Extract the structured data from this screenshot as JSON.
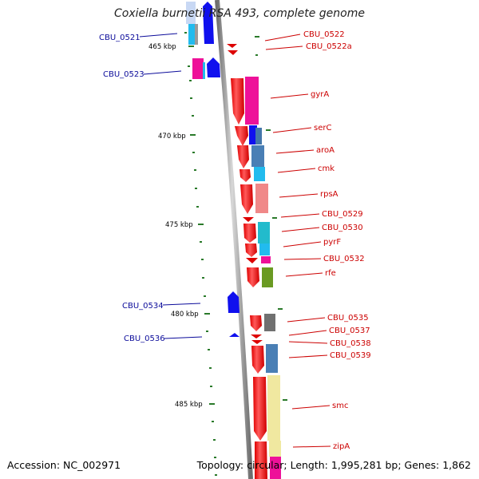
{
  "title": "Coxiella burnetii RSA 493, complete genome",
  "footer": {
    "accession": "Accession: NC_002971",
    "topology": "Topology: circular; Length: 1,995,281 bp; Genes: 1,862"
  },
  "scale_labels": [
    "465 kbp",
    "470 kbp",
    "475 kbp",
    "480 kbp",
    "485 kbp"
  ],
  "colors": {
    "forward_strand_label": "#0b0b9a",
    "reverse_strand_label": "#cc0000",
    "backbone": "#8c8c8c",
    "tick": "#2a7a2a"
  },
  "genes_forward": [
    "CBU_0521",
    "CBU_0523",
    "CBU_0534",
    "CBU_0536"
  ],
  "genes_reverse": [
    "CBU_0522",
    "CBU_0522a",
    "gyrA",
    "serC",
    "aroA",
    "cmk",
    "rpsA",
    "CBU_0529",
    "CBU_0530",
    "pyrF",
    "CBU_0532",
    "rfe",
    "CBU_0535",
    "CBU_0537",
    "CBU_0538",
    "CBU_0539",
    "smc",
    "zipA"
  ]
}
